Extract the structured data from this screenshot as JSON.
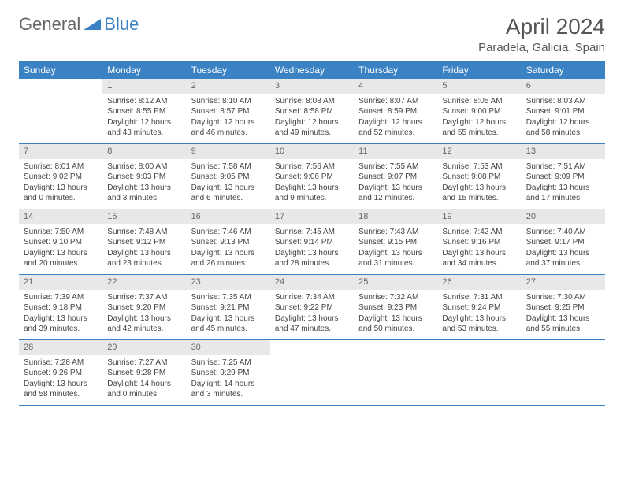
{
  "logo": {
    "part1": "General",
    "part2": "Blue"
  },
  "title": "April 2024",
  "location": "Paradela, Galicia, Spain",
  "colors": {
    "accent": "#3b82c4",
    "daynum_bg": "#e8e8e8",
    "text": "#444444",
    "header_text": "#555555",
    "background": "#ffffff"
  },
  "typography": {
    "title_fontsize": 28,
    "location_fontsize": 15,
    "dayname_fontsize": 12,
    "cell_fontsize": 10
  },
  "dayNames": [
    "Sunday",
    "Monday",
    "Tuesday",
    "Wednesday",
    "Thursday",
    "Friday",
    "Saturday"
  ],
  "weeks": [
    [
      {
        "empty": true
      },
      {
        "num": "1",
        "sunrise": "Sunrise: 8:12 AM",
        "sunset": "Sunset: 8:55 PM",
        "day1": "Daylight: 12 hours",
        "day2": "and 43 minutes."
      },
      {
        "num": "2",
        "sunrise": "Sunrise: 8:10 AM",
        "sunset": "Sunset: 8:57 PM",
        "day1": "Daylight: 12 hours",
        "day2": "and 46 minutes."
      },
      {
        "num": "3",
        "sunrise": "Sunrise: 8:08 AM",
        "sunset": "Sunset: 8:58 PM",
        "day1": "Daylight: 12 hours",
        "day2": "and 49 minutes."
      },
      {
        "num": "4",
        "sunrise": "Sunrise: 8:07 AM",
        "sunset": "Sunset: 8:59 PM",
        "day1": "Daylight: 12 hours",
        "day2": "and 52 minutes."
      },
      {
        "num": "5",
        "sunrise": "Sunrise: 8:05 AM",
        "sunset": "Sunset: 9:00 PM",
        "day1": "Daylight: 12 hours",
        "day2": "and 55 minutes."
      },
      {
        "num": "6",
        "sunrise": "Sunrise: 8:03 AM",
        "sunset": "Sunset: 9:01 PM",
        "day1": "Daylight: 12 hours",
        "day2": "and 58 minutes."
      }
    ],
    [
      {
        "num": "7",
        "sunrise": "Sunrise: 8:01 AM",
        "sunset": "Sunset: 9:02 PM",
        "day1": "Daylight: 13 hours",
        "day2": "and 0 minutes."
      },
      {
        "num": "8",
        "sunrise": "Sunrise: 8:00 AM",
        "sunset": "Sunset: 9:03 PM",
        "day1": "Daylight: 13 hours",
        "day2": "and 3 minutes."
      },
      {
        "num": "9",
        "sunrise": "Sunrise: 7:58 AM",
        "sunset": "Sunset: 9:05 PM",
        "day1": "Daylight: 13 hours",
        "day2": "and 6 minutes."
      },
      {
        "num": "10",
        "sunrise": "Sunrise: 7:56 AM",
        "sunset": "Sunset: 9:06 PM",
        "day1": "Daylight: 13 hours",
        "day2": "and 9 minutes."
      },
      {
        "num": "11",
        "sunrise": "Sunrise: 7:55 AM",
        "sunset": "Sunset: 9:07 PM",
        "day1": "Daylight: 13 hours",
        "day2": "and 12 minutes."
      },
      {
        "num": "12",
        "sunrise": "Sunrise: 7:53 AM",
        "sunset": "Sunset: 9:08 PM",
        "day1": "Daylight: 13 hours",
        "day2": "and 15 minutes."
      },
      {
        "num": "13",
        "sunrise": "Sunrise: 7:51 AM",
        "sunset": "Sunset: 9:09 PM",
        "day1": "Daylight: 13 hours",
        "day2": "and 17 minutes."
      }
    ],
    [
      {
        "num": "14",
        "sunrise": "Sunrise: 7:50 AM",
        "sunset": "Sunset: 9:10 PM",
        "day1": "Daylight: 13 hours",
        "day2": "and 20 minutes."
      },
      {
        "num": "15",
        "sunrise": "Sunrise: 7:48 AM",
        "sunset": "Sunset: 9:12 PM",
        "day1": "Daylight: 13 hours",
        "day2": "and 23 minutes."
      },
      {
        "num": "16",
        "sunrise": "Sunrise: 7:46 AM",
        "sunset": "Sunset: 9:13 PM",
        "day1": "Daylight: 13 hours",
        "day2": "and 26 minutes."
      },
      {
        "num": "17",
        "sunrise": "Sunrise: 7:45 AM",
        "sunset": "Sunset: 9:14 PM",
        "day1": "Daylight: 13 hours",
        "day2": "and 28 minutes."
      },
      {
        "num": "18",
        "sunrise": "Sunrise: 7:43 AM",
        "sunset": "Sunset: 9:15 PM",
        "day1": "Daylight: 13 hours",
        "day2": "and 31 minutes."
      },
      {
        "num": "19",
        "sunrise": "Sunrise: 7:42 AM",
        "sunset": "Sunset: 9:16 PM",
        "day1": "Daylight: 13 hours",
        "day2": "and 34 minutes."
      },
      {
        "num": "20",
        "sunrise": "Sunrise: 7:40 AM",
        "sunset": "Sunset: 9:17 PM",
        "day1": "Daylight: 13 hours",
        "day2": "and 37 minutes."
      }
    ],
    [
      {
        "num": "21",
        "sunrise": "Sunrise: 7:39 AM",
        "sunset": "Sunset: 9:18 PM",
        "day1": "Daylight: 13 hours",
        "day2": "and 39 minutes."
      },
      {
        "num": "22",
        "sunrise": "Sunrise: 7:37 AM",
        "sunset": "Sunset: 9:20 PM",
        "day1": "Daylight: 13 hours",
        "day2": "and 42 minutes."
      },
      {
        "num": "23",
        "sunrise": "Sunrise: 7:35 AM",
        "sunset": "Sunset: 9:21 PM",
        "day1": "Daylight: 13 hours",
        "day2": "and 45 minutes."
      },
      {
        "num": "24",
        "sunrise": "Sunrise: 7:34 AM",
        "sunset": "Sunset: 9:22 PM",
        "day1": "Daylight: 13 hours",
        "day2": "and 47 minutes."
      },
      {
        "num": "25",
        "sunrise": "Sunrise: 7:32 AM",
        "sunset": "Sunset: 9:23 PM",
        "day1": "Daylight: 13 hours",
        "day2": "and 50 minutes."
      },
      {
        "num": "26",
        "sunrise": "Sunrise: 7:31 AM",
        "sunset": "Sunset: 9:24 PM",
        "day1": "Daylight: 13 hours",
        "day2": "and 53 minutes."
      },
      {
        "num": "27",
        "sunrise": "Sunrise: 7:30 AM",
        "sunset": "Sunset: 9:25 PM",
        "day1": "Daylight: 13 hours",
        "day2": "and 55 minutes."
      }
    ],
    [
      {
        "num": "28",
        "sunrise": "Sunrise: 7:28 AM",
        "sunset": "Sunset: 9:26 PM",
        "day1": "Daylight: 13 hours",
        "day2": "and 58 minutes."
      },
      {
        "num": "29",
        "sunrise": "Sunrise: 7:27 AM",
        "sunset": "Sunset: 9:28 PM",
        "day1": "Daylight: 14 hours",
        "day2": "and 0 minutes."
      },
      {
        "num": "30",
        "sunrise": "Sunrise: 7:25 AM",
        "sunset": "Sunset: 9:29 PM",
        "day1": "Daylight: 14 hours",
        "day2": "and 3 minutes."
      },
      {
        "empty": true
      },
      {
        "empty": true
      },
      {
        "empty": true
      },
      {
        "empty": true
      }
    ]
  ]
}
